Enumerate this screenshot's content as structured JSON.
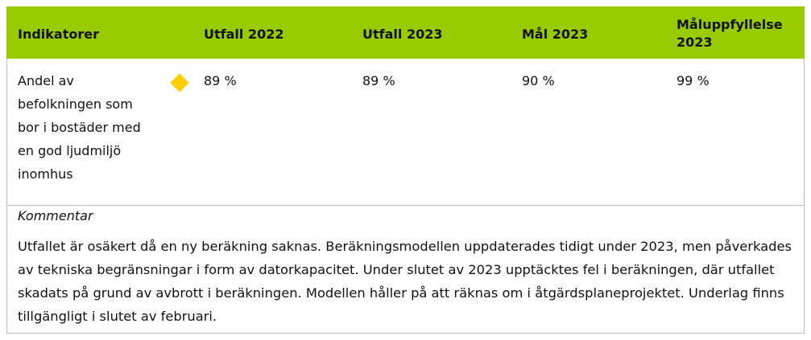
{
  "table": {
    "header": [
      "Indikatorer",
      "Utfall 2022",
      "Utfall 2023",
      "Mål 2023",
      "Måluppfyllelse 2023"
    ],
    "rows": [
      [
        "Andel av befolkningen som bor i bostäder med en god ljudmiljö inomhus",
        "89 %",
        "89 %",
        "90 %",
        "99 %"
      ]
    ]
  },
  "comment": {
    "label": "Kommentar",
    "text": "Utfallet är osäkert då en ny beräkning saknas. Beräkningsmodellen uppdaterades tidigt under 2023, men påverkades av tekniska begränsningar i form av datorkapacitet. Under slutet av 2023 upptäcktes fel i beräkningen, där utfallet skadats på grund av avbrott i beräkningen. Modellen håller på att räknas om i åtgärdsplaneprojektet. Underlag finns tillgängligt i slutet av februari."
  }
}
